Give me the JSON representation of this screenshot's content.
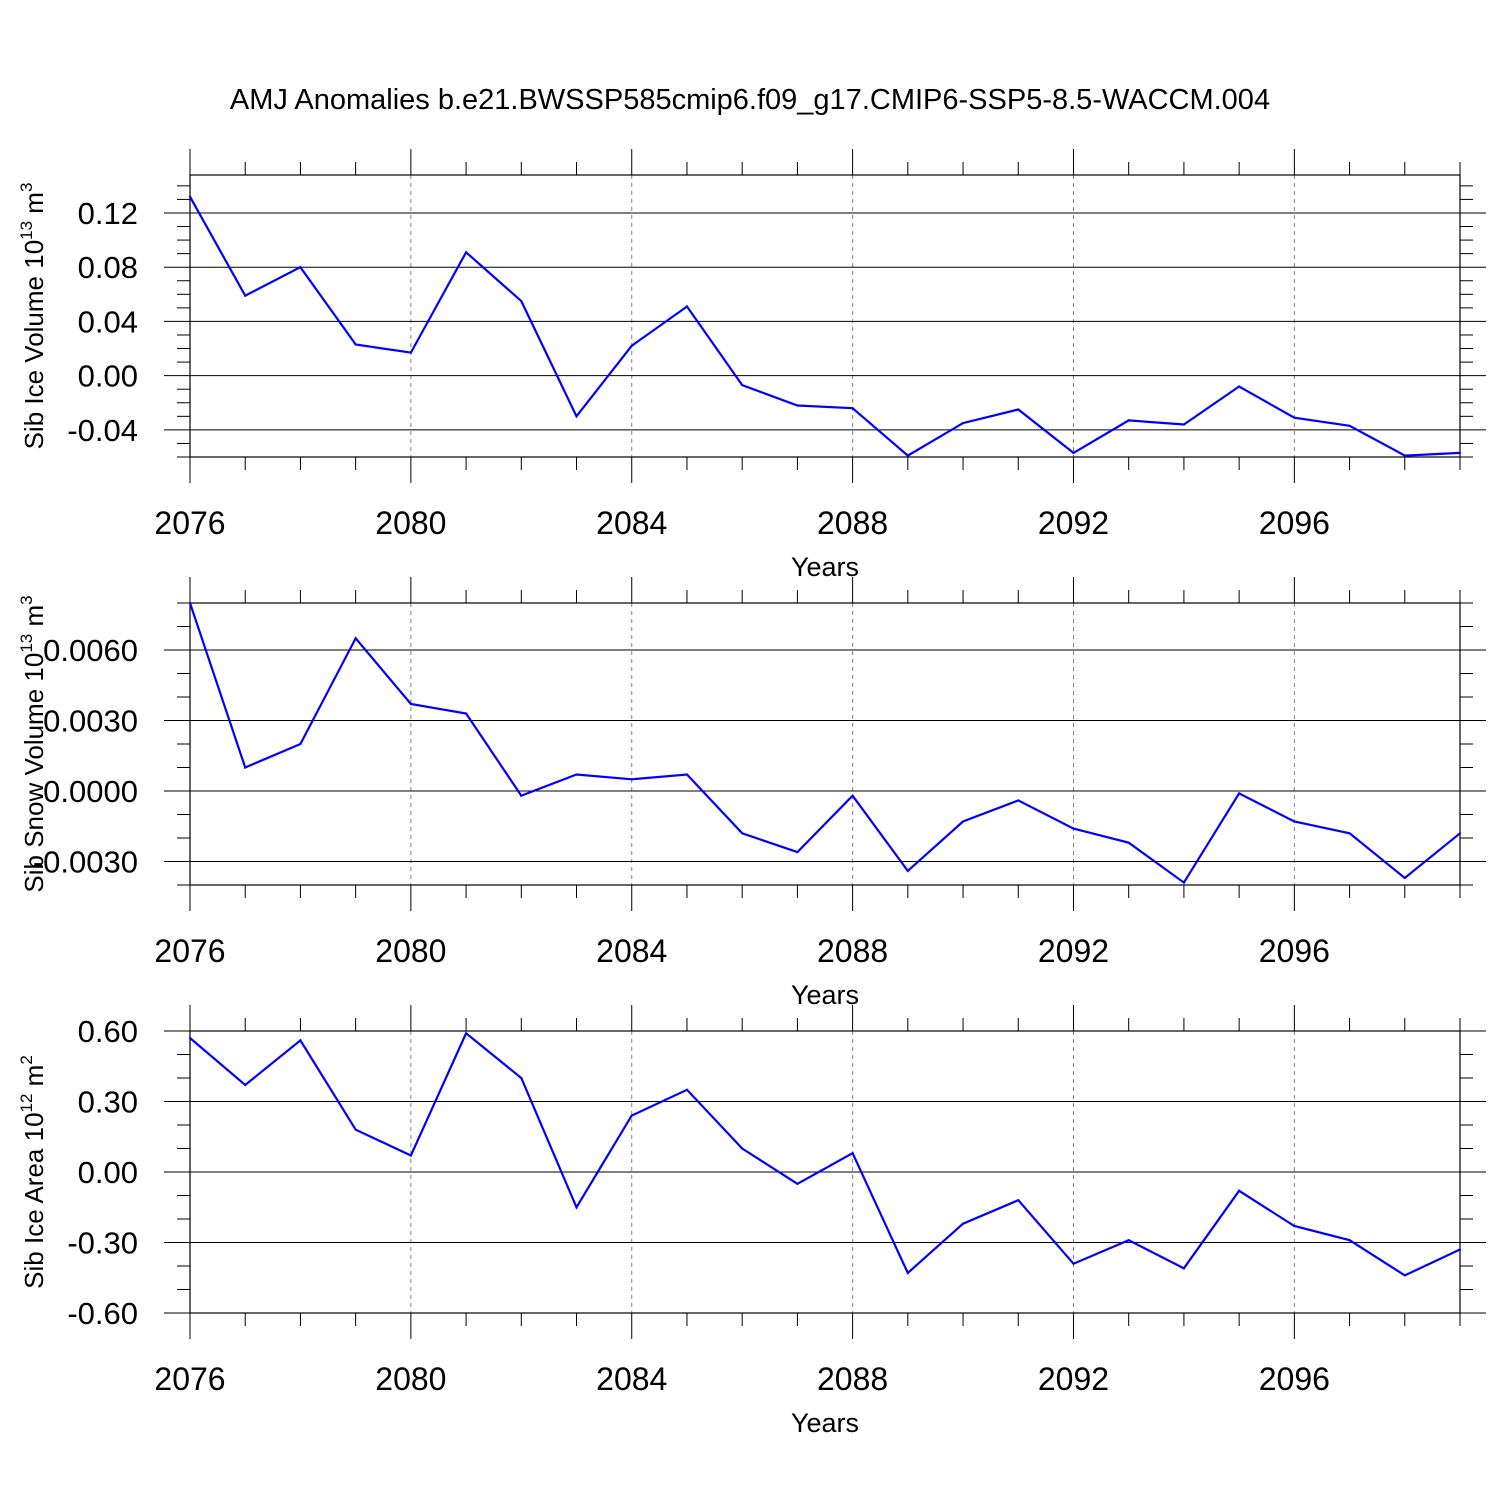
{
  "title": "AMJ Anomalies b.e21.BWSSP585cmip6.f09_g17.CMIP6-SSP5-8.5-WACCM.004",
  "colors": {
    "series": "#0000ff",
    "axis": "#000000",
    "grid": "#808080"
  },
  "chart_data": [
    {
      "type": "line",
      "ylabel": "Sib Ice Volume 10",
      "ylabel_sup": "13",
      "ylabel_unit": "m",
      "ylabel_unit_sup": "3",
      "xlabel": "Years",
      "xlim": [
        2076,
        2099
      ],
      "ylim": [
        -0.06,
        0.148
      ],
      "yticks": [
        -0.04,
        0.0,
        0.04,
        0.08,
        0.12
      ],
      "ytick_labels": [
        "-0.04",
        "0.00",
        "0.04",
        "0.08",
        "0.12"
      ],
      "ytick_minor": 0.01,
      "xticks": [
        2076,
        2080,
        2084,
        2088,
        2092,
        2096
      ],
      "xtick_labels": [
        "2076",
        "2080",
        "2084",
        "2088",
        "2092",
        "2096"
      ],
      "x": [
        2076,
        2077,
        2078,
        2079,
        2080,
        2081,
        2082,
        2083,
        2084,
        2085,
        2086,
        2087,
        2088,
        2089,
        2090,
        2091,
        2092,
        2093,
        2094,
        2095,
        2096,
        2097,
        2098,
        2099
      ],
      "values": [
        0.132,
        0.059,
        0.08,
        0.023,
        0.017,
        0.091,
        0.055,
        -0.03,
        0.022,
        0.051,
        -0.007,
        -0.022,
        -0.024,
        -0.059,
        -0.035,
        -0.025,
        -0.057,
        -0.033,
        -0.036,
        -0.008,
        -0.031,
        -0.037,
        -0.059,
        -0.057
      ]
    },
    {
      "type": "line",
      "ylabel": "Sib Snow Volume 10",
      "ylabel_sup": "13",
      "ylabel_unit": "m",
      "ylabel_unit_sup": "3",
      "xlabel": "Years",
      "xlim": [
        2076,
        2099
      ],
      "ylim": [
        -0.004,
        0.008
      ],
      "yticks": [
        -0.003,
        0.0,
        0.003,
        0.006
      ],
      "ytick_labels": [
        "-0.0030",
        "0.0000",
        "0.0030",
        "0.0060"
      ],
      "ytick_minor": 0.001,
      "xticks": [
        2076,
        2080,
        2084,
        2088,
        2092,
        2096
      ],
      "xtick_labels": [
        "2076",
        "2080",
        "2084",
        "2088",
        "2092",
        "2096"
      ],
      "x": [
        2076,
        2077,
        2078,
        2079,
        2080,
        2081,
        2082,
        2083,
        2084,
        2085,
        2086,
        2087,
        2088,
        2089,
        2090,
        2091,
        2092,
        2093,
        2094,
        2095,
        2096,
        2097,
        2098,
        2099
      ],
      "values": [
        0.008,
        0.001,
        0.002,
        0.0065,
        0.0037,
        0.0033,
        -0.0002,
        0.0007,
        0.0005,
        0.0007,
        -0.0018,
        -0.0026,
        -0.0002,
        -0.0034,
        -0.0013,
        -0.0004,
        -0.0016,
        -0.0022,
        -0.0039,
        -0.0001,
        -0.0013,
        -0.0018,
        -0.0037,
        -0.0018
      ]
    },
    {
      "type": "line",
      "ylabel": "Sib Ice Area 10",
      "ylabel_sup": "12",
      "ylabel_unit": "m",
      "ylabel_unit_sup": "2",
      "xlabel": "Years",
      "xlim": [
        2076,
        2099
      ],
      "ylim": [
        -0.6,
        0.6
      ],
      "yticks": [
        -0.6,
        -0.3,
        0.0,
        0.3,
        0.6
      ],
      "ytick_labels": [
        "-0.60",
        "-0.30",
        "0.00",
        "0.30",
        "0.60"
      ],
      "ytick_minor": 0.1,
      "xticks": [
        2076,
        2080,
        2084,
        2088,
        2092,
        2096
      ],
      "xtick_labels": [
        "2076",
        "2080",
        "2084",
        "2088",
        "2092",
        "2096"
      ],
      "x": [
        2076,
        2077,
        2078,
        2079,
        2080,
        2081,
        2082,
        2083,
        2084,
        2085,
        2086,
        2087,
        2088,
        2089,
        2090,
        2091,
        2092,
        2093,
        2094,
        2095,
        2096,
        2097,
        2098,
        2099
      ],
      "values": [
        0.57,
        0.37,
        0.56,
        0.18,
        0.07,
        0.59,
        0.4,
        -0.15,
        0.24,
        0.35,
        0.1,
        -0.05,
        0.08,
        -0.43,
        -0.22,
        -0.12,
        -0.39,
        -0.29,
        -0.41,
        -0.08,
        -0.23,
        -0.29,
        -0.44,
        -0.33
      ]
    }
  ]
}
